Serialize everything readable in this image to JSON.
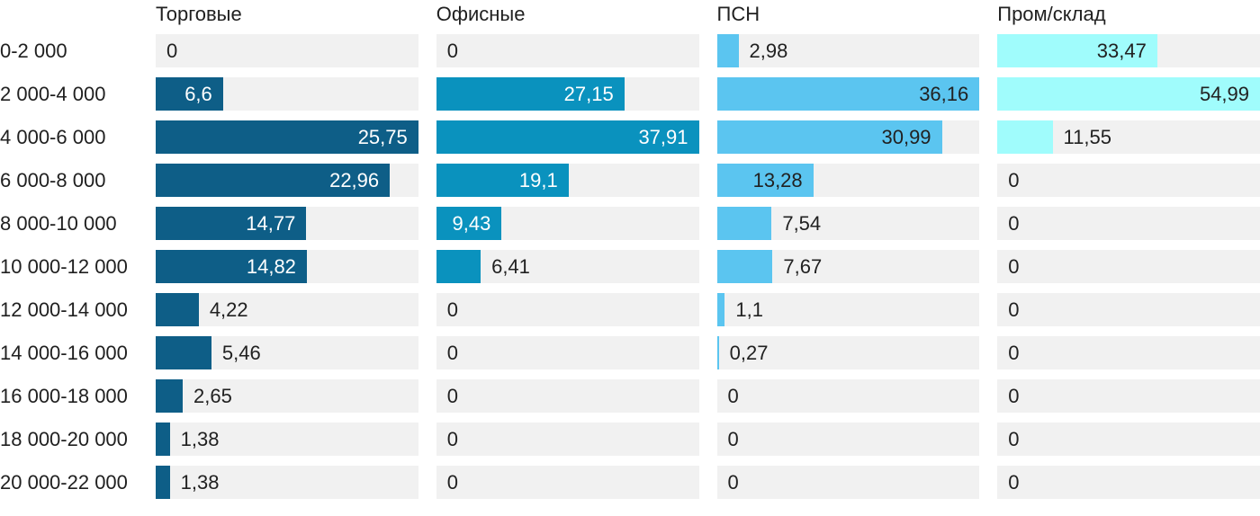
{
  "chart_data": {
    "type": "bar",
    "orientation": "horizontal",
    "title": "",
    "value_format": "comma-decimal",
    "scaling": "each column scaled independently to its own max value",
    "grid": false,
    "legend": "column headers above each bar column",
    "track_color": "#f1f1f1",
    "text_color": "#212121",
    "categories": [
      "0-2 000",
      "2 000-4 000",
      "4 000-6 000",
      "6 000-8 000",
      "8 000-10 000",
      "10 000-12 000",
      "12 000-14 000",
      "14 000-16 000",
      "16 000-18 000",
      "18 000-20 000",
      "20 000-22 000"
    ],
    "series": [
      {
        "name": "Торговые",
        "key": "torgovye",
        "color": "#0e5e87",
        "inside_label_color": "#ffffff",
        "max": 25.75,
        "values": [
          0,
          6.6,
          25.75,
          22.96,
          14.77,
          14.82,
          4.22,
          5.46,
          2.65,
          1.38,
          1.38
        ],
        "labels": [
          "0",
          "6,6",
          "25,75",
          "22,96",
          "14,77",
          "14,82",
          "4,22",
          "5,46",
          "2,65",
          "1,38",
          "1,38"
        ]
      },
      {
        "name": "Офисные",
        "key": "ofisnye",
        "color": "#0a92be",
        "inside_label_color": "#ffffff",
        "max": 37.91,
        "values": [
          0,
          27.15,
          37.91,
          19.1,
          9.43,
          6.41,
          0,
          0,
          0,
          0,
          0
        ],
        "labels": [
          "0",
          "27,15",
          "37,91",
          "19,1",
          "9,43",
          "6,41",
          "0",
          "0",
          "0",
          "0",
          "0"
        ]
      },
      {
        "name": "ПСН",
        "key": "psn",
        "color": "#5bc5f0",
        "inside_label_color": "#212121",
        "max": 36.16,
        "values": [
          2.98,
          36.16,
          30.99,
          13.28,
          7.54,
          7.67,
          1.1,
          0.27,
          0,
          0,
          0
        ],
        "labels": [
          "2,98",
          "36,16",
          "30,99",
          "13,28",
          "7,54",
          "7,67",
          "1,1",
          "0,27",
          "0",
          "0",
          "0"
        ]
      },
      {
        "name": "Пром/склад",
        "key": "prom-sklad",
        "color": "#a0fcfc",
        "inside_label_color": "#212121",
        "max": 54.99,
        "values": [
          33.47,
          54.99,
          11.55,
          0,
          0,
          0,
          0,
          0,
          0,
          0,
          0
        ],
        "labels": [
          "33,47",
          "54,99",
          "11,55",
          "0",
          "0",
          "0",
          "0",
          "0",
          "0",
          "0",
          "0"
        ]
      }
    ]
  }
}
